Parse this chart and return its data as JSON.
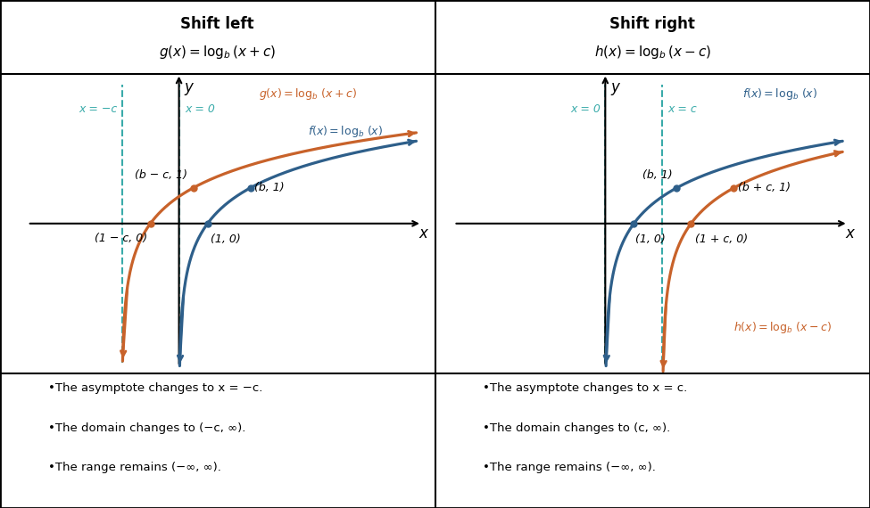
{
  "fig_width": 9.75,
  "fig_height": 5.7,
  "dpi": 100,
  "bg_color": "#ffffff",
  "border_color": "#000000",
  "dark_blue": "#2e5f8a",
  "orange": "#c8622a",
  "teal": "#3aabaa",
  "b_val": 2.5,
  "c_val": 2.0,
  "xl": -5.5,
  "xr": 8.5,
  "yb": -4.2,
  "yt": 4.2,
  "left_title": "Shift left",
  "left_sub": "g(x) = log_b(x + c)",
  "right_title": "Shift right",
  "right_sub": "h(x) = log_b(x - c)",
  "left_notes": [
    "•The asymptote changes to x = −c.",
    "•The domain changes to (−c, ∞).",
    "•The range remains (−∞, ∞)."
  ],
  "right_notes": [
    "•The asymptote changes to x = c.",
    "•The domain changes to (c, ∞).",
    "•The range remains (−∞, ∞)."
  ]
}
